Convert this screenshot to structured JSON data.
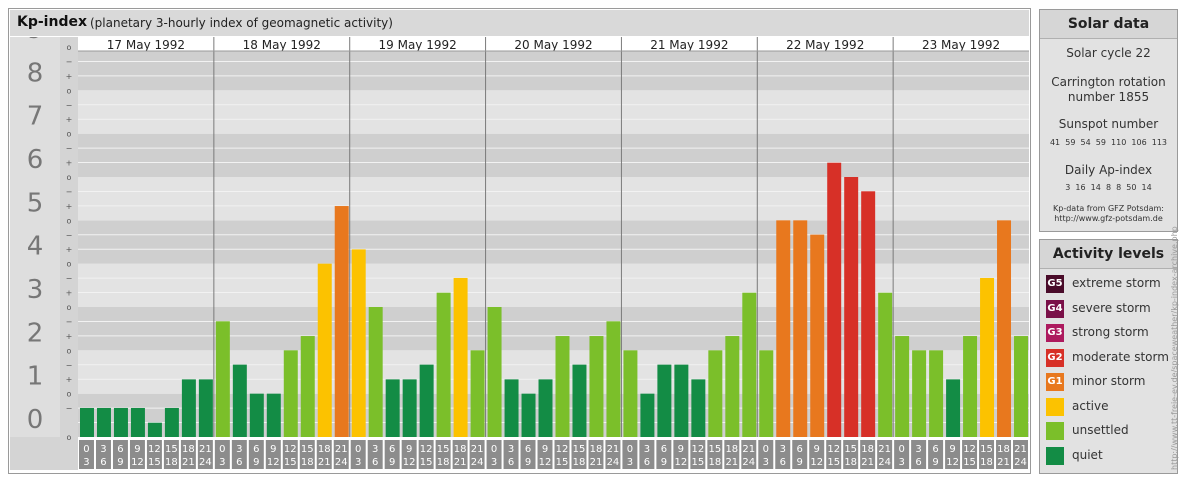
{
  "header": {
    "title": "Kp-index",
    "subtitle": "(planetary 3-hourly index of geomagnetic activity)"
  },
  "chart_data": {
    "type": "bar",
    "title": "Kp-index",
    "subtitle": "(planetary 3-hourly index of geomagnetic activity)",
    "ylim": [
      0,
      9
    ],
    "y_ticks": [
      "0",
      "1",
      "2",
      "3",
      "4",
      "5",
      "6",
      "7",
      "8",
      "9"
    ],
    "sub_ticks": [
      "o",
      "+",
      "−"
    ],
    "days": [
      "17 May 1992",
      "18 May 1992",
      "19 May 1992",
      "20 May 1992",
      "21 May 1992",
      "22 May 1992",
      "23 May 1992"
    ],
    "interval_labels": [
      [
        "0",
        "3"
      ],
      [
        "3",
        "6"
      ],
      [
        "6",
        "9"
      ],
      [
        "9",
        "12"
      ],
      [
        "12",
        "15"
      ],
      [
        "15",
        "18"
      ],
      [
        "18",
        "21"
      ],
      [
        "21",
        "24"
      ]
    ],
    "series": [
      {
        "values": [
          0.67,
          0.67,
          0.67,
          0.67,
          0.33,
          0.67,
          1.33,
          1.33,
          2.67,
          1.67,
          1.0,
          1.0,
          2.0,
          2.33,
          4.0,
          5.33,
          4.33,
          3.0,
          1.33,
          1.33,
          1.67,
          3.33,
          3.67,
          2.0,
          3.0,
          1.33,
          1.0,
          1.33,
          2.33,
          1.67,
          2.33,
          2.67,
          2.0,
          1.0,
          1.67,
          1.67,
          1.33,
          2.0,
          2.33,
          3.33,
          2.0,
          5.0,
          5.0,
          4.67,
          6.33,
          6.0,
          5.67,
          3.33,
          2.33,
          2.0,
          2.0,
          1.33,
          2.33,
          3.67,
          5.0,
          2.33
        ]
      }
    ],
    "grid": true
  },
  "solar": {
    "title": "Solar data",
    "cycle": "Solar cycle 22",
    "carrington_line1": "Carrington rotation",
    "carrington_line2": "number 1855",
    "sunspot_title": "Sunspot number",
    "sunspot_values": "41  59  54  59  110  106  113",
    "ap_title": "Daily Ap-index",
    "ap_values": "3  16  14  8  8  50  14",
    "source_line1": "Kp-data from GFZ Potsdam:",
    "source_line2": "http://www.gfz-potsdam.de"
  },
  "activity": {
    "title": "Activity levels",
    "levels": [
      {
        "code": "G5",
        "label": "extreme storm",
        "color": "#4a0c2a"
      },
      {
        "code": "G4",
        "label": "severe storm",
        "color": "#7a1048"
      },
      {
        "code": "G3",
        "label": "strong storm",
        "color": "#ad1a5e"
      },
      {
        "code": "G2",
        "label": "moderate storm",
        "color": "#d73027"
      },
      {
        "code": "G1",
        "label": "minor storm",
        "color": "#e8781e"
      },
      {
        "code": "",
        "label": "active",
        "color": "#fcc200"
      },
      {
        "code": "",
        "label": "unsettled",
        "color": "#7bbf2a"
      },
      {
        "code": "",
        "label": "quiet",
        "color": "#138c45"
      }
    ]
  },
  "credit": "http://www.tt-freie-ev.de/spaceweather/kp-index-archive.php"
}
